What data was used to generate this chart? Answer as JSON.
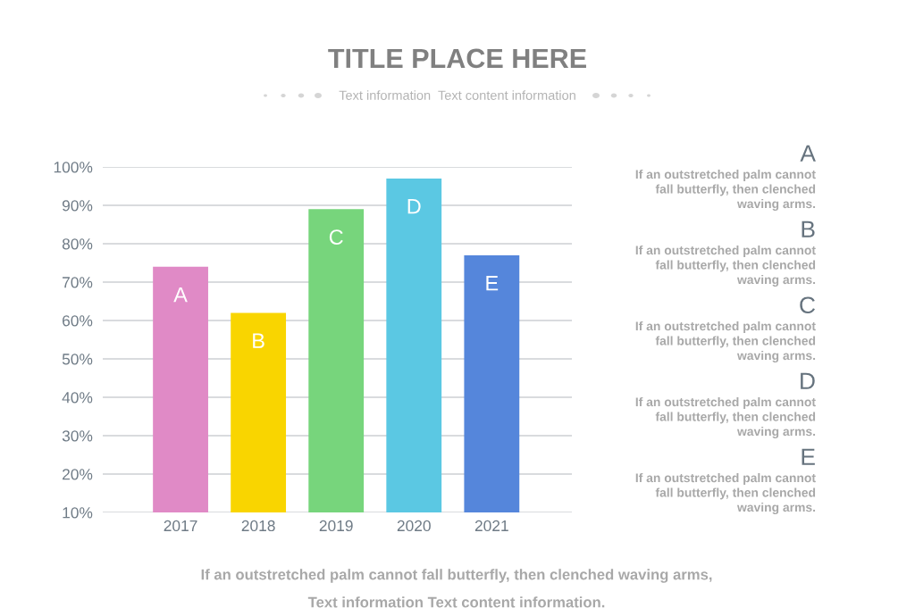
{
  "chart_data": {
    "type": "bar",
    "title": "TITLE PLACE HERE",
    "subtitle": "Text information  Text content information",
    "categories": [
      "2017",
      "2018",
      "2019",
      "2020",
      "2021"
    ],
    "values": [
      74,
      62,
      89,
      97,
      77
    ],
    "colors": [
      "#e08ac6",
      "#f9d500",
      "#77d57c",
      "#5bc8e3",
      "#5586db"
    ],
    "value_labels": [
      "A",
      "B",
      "C",
      "D",
      "E"
    ],
    "ylim": [
      10,
      100
    ],
    "yticks": [
      {
        "value": 10,
        "label": "10%"
      },
      {
        "value": 20,
        "label": "20%"
      },
      {
        "value": 30,
        "label": "30%"
      },
      {
        "value": 40,
        "label": "40%"
      },
      {
        "value": 50,
        "label": "50%"
      },
      {
        "value": 60,
        "label": "60%"
      },
      {
        "value": 70,
        "label": "70%"
      },
      {
        "value": 80,
        "label": "80%"
      },
      {
        "value": 90,
        "label": "90%"
      },
      {
        "value": 100,
        "label": "100%"
      }
    ],
    "grid": "y",
    "annotations": [
      "A",
      "If an outstretched palm cannot\nfall butterfly, then clenched\nwaving arms.",
      "B",
      "If an outstretched palm cannot\nfall butterfly, then clenched\nwaving arms.",
      "C",
      "If an outstretched palm cannot\nfall butterfly, then clenched\nwaving arms.",
      "D",
      "If an outstretched palm cannot\nfall butterfly, then clenched\nwaving arms.",
      "E",
      "If an outstretched palm cannot\nfall butterfly, then clenched\nwaving arms.",
      "If an outstretched palm cannot fall butterfly, then clenched waving arms,",
      "Text information Text content information."
    ]
  }
}
